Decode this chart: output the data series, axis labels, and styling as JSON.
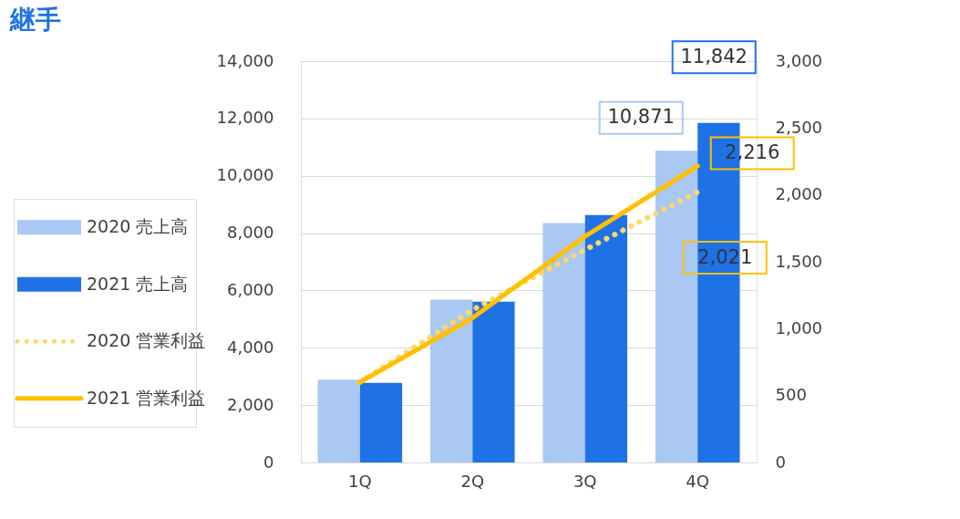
{
  "chart_data": {
    "type": "bar",
    "title": "継手",
    "categories": [
      "1Q",
      "2Q",
      "3Q",
      "4Q"
    ],
    "series": [
      {
        "name": "2020 売上高",
        "color": "#a9c8f4",
        "values": [
          2890,
          5680,
          8350,
          10871
        ],
        "value_labels": [
          null,
          null,
          null,
          "10,871"
        ]
      },
      {
        "name": "2021 売上高",
        "color": "#1e72e6",
        "values": [
          2780,
          5610,
          8630,
          11842
        ],
        "value_labels": [
          null,
          null,
          null,
          "11,842"
        ]
      },
      {
        "name": "2020 営業利益",
        "type": "line",
        "axis": "y2",
        "line_style": "dotted",
        "color": "#ffd966",
        "values": [
          600,
          1140,
          1590,
          2021
        ],
        "value_labels": [
          null,
          null,
          null,
          "2,021"
        ]
      },
      {
        "name": "2021 営業利益",
        "type": "line",
        "axis": "y2",
        "line_style": "solid",
        "color": "#ffc000",
        "values": [
          600,
          1080,
          1690,
          2216
        ],
        "value_labels": [
          null,
          null,
          null,
          "2,216"
        ]
      }
    ],
    "ylim": [
      0,
      14000
    ],
    "yticks": [
      0,
      {
        "value": 2000,
        "label": "2,000"
      },
      {
        "value": 4000,
        "label": "4,000"
      },
      {
        "value": 6000,
        "label": "6,000"
      },
      {
        "value": 8000,
        "label": "8,000"
      },
      {
        "value": 10000,
        "label": "10,000"
      },
      {
        "value": 12000,
        "label": "12,000"
      },
      {
        "value": 14000,
        "label": "14,000"
      }
    ],
    "y2lim": [
      0,
      3000
    ],
    "y2ticks": [
      0,
      500,
      {
        "value": 1000,
        "label": "1,000"
      },
      {
        "value": 1500,
        "label": "1,500"
      },
      {
        "value": 2000,
        "label": "2,000"
      },
      {
        "value": 2500,
        "label": "2,500"
      },
      {
        "value": 3000,
        "label": "3,000"
      }
    ],
    "grid": "y",
    "legend": "left"
  }
}
